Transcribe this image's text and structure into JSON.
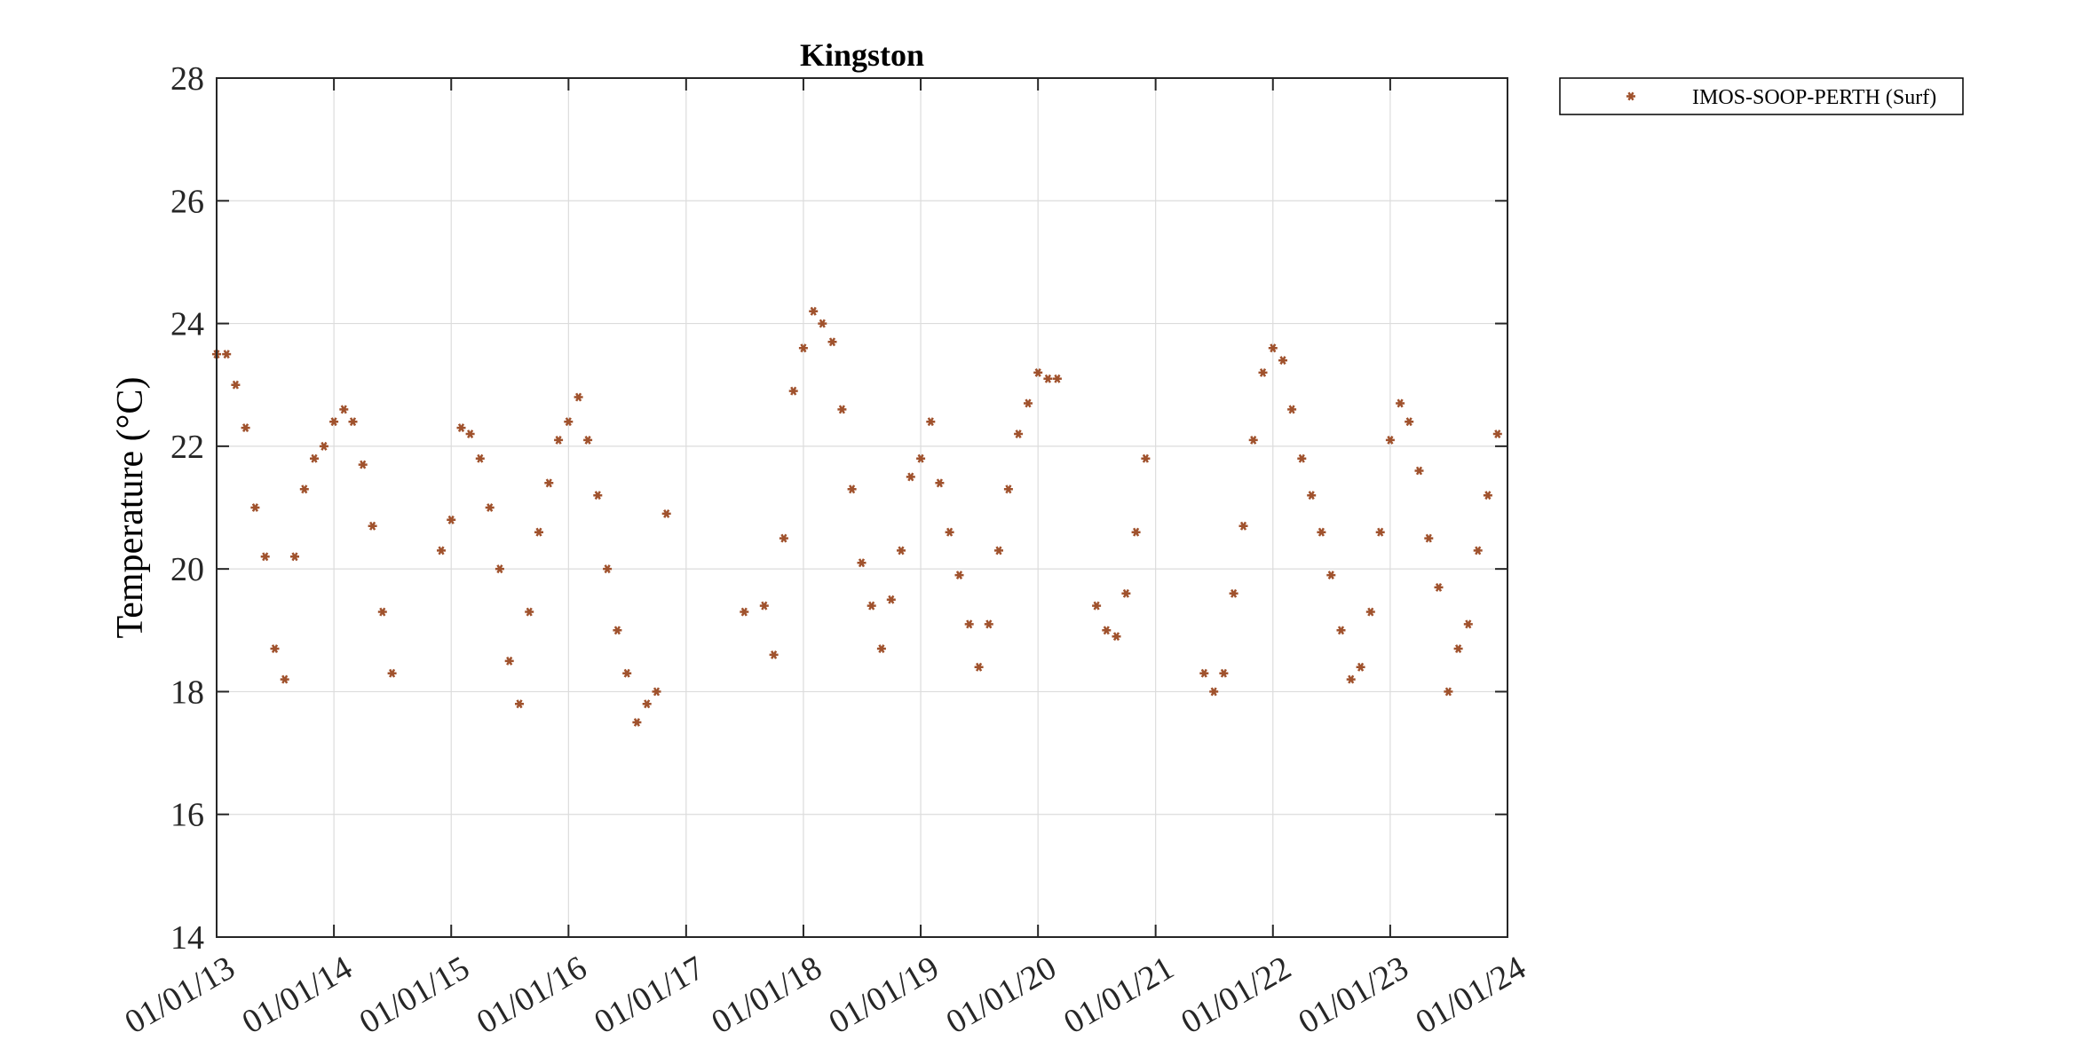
{
  "chart_data": {
    "type": "scatter",
    "title": "Kingston",
    "xlabel": "",
    "ylabel": "Temperature (°C)",
    "ylim": [
      14,
      28
    ],
    "yticks": [
      14,
      16,
      18,
      20,
      22,
      24,
      26,
      28
    ],
    "xlim": [
      "2013-01-01",
      "2024-01-01"
    ],
    "xtick_dates": [
      "2013-01-01",
      "2014-01-01",
      "2015-01-01",
      "2016-01-01",
      "2017-01-01",
      "2018-01-01",
      "2019-01-01",
      "2020-01-01",
      "2021-01-01",
      "2022-01-01",
      "2023-01-01",
      "2024-01-01"
    ],
    "xtick_labels": [
      "01/01/13",
      "01/01/14",
      "01/01/15",
      "01/01/16",
      "01/01/17",
      "01/01/18",
      "01/01/19",
      "01/01/20",
      "01/01/21",
      "01/01/22",
      "01/01/23",
      "01/01/24"
    ],
    "grid": true,
    "legend_position": "outside top-right",
    "series": [
      {
        "name": "IMOS-SOOP-PERTH (Surf)",
        "color": "#A0522D",
        "marker": "asterisk",
        "x": [
          "2013-01-01",
          "2013-02-01",
          "2013-03-01",
          "2013-04-01",
          "2013-05-01",
          "2013-06-01",
          "2013-07-01",
          "2013-08-01",
          "2013-09-01",
          "2013-10-01",
          "2013-11-01",
          "2013-12-01",
          "2014-01-01",
          "2014-02-01",
          "2014-03-01",
          "2014-04-01",
          "2014-05-01",
          "2014-06-01",
          "2014-07-01",
          "2014-12-01",
          "2015-01-01",
          "2015-02-01",
          "2015-03-01",
          "2015-04-01",
          "2015-05-01",
          "2015-06-01",
          "2015-07-01",
          "2015-08-01",
          "2015-09-01",
          "2015-10-01",
          "2015-11-01",
          "2015-12-01",
          "2016-01-01",
          "2016-02-01",
          "2016-03-01",
          "2016-04-01",
          "2016-05-01",
          "2016-06-01",
          "2016-07-01",
          "2016-08-01",
          "2016-09-01",
          "2016-10-01",
          "2016-11-01",
          "2017-07-01",
          "2017-09-01",
          "2017-10-01",
          "2017-11-01",
          "2017-12-01",
          "2018-01-01",
          "2018-02-01",
          "2018-03-01",
          "2018-04-01",
          "2018-05-01",
          "2018-06-01",
          "2018-07-01",
          "2018-08-01",
          "2018-09-01",
          "2018-10-01",
          "2018-11-01",
          "2018-12-01",
          "2019-01-01",
          "2019-02-01",
          "2019-03-01",
          "2019-04-01",
          "2019-05-01",
          "2019-06-01",
          "2019-07-01",
          "2019-08-01",
          "2019-09-01",
          "2019-10-01",
          "2019-11-01",
          "2019-12-01",
          "2020-01-01",
          "2020-02-01",
          "2020-03-01",
          "2020-07-01",
          "2020-08-01",
          "2020-09-01",
          "2020-10-01",
          "2020-11-01",
          "2020-12-01",
          "2021-06-01",
          "2021-07-01",
          "2021-08-01",
          "2021-09-01",
          "2021-10-01",
          "2021-11-01",
          "2021-12-01",
          "2022-01-01",
          "2022-02-01",
          "2022-03-01",
          "2022-04-01",
          "2022-05-01",
          "2022-06-01",
          "2022-07-01",
          "2022-08-01",
          "2022-09-01",
          "2022-10-01",
          "2022-11-01",
          "2022-12-01",
          "2023-01-01",
          "2023-02-01",
          "2023-03-01",
          "2023-04-01",
          "2023-05-01",
          "2023-06-01",
          "2023-07-01",
          "2023-08-01",
          "2023-09-01",
          "2023-10-01",
          "2023-11-01",
          "2023-12-01"
        ],
        "y": [
          23.5,
          23.5,
          23.0,
          22.3,
          21.0,
          20.2,
          18.7,
          18.2,
          20.2,
          21.3,
          21.8,
          22.0,
          22.4,
          22.6,
          22.4,
          21.7,
          20.7,
          19.3,
          18.3,
          20.3,
          20.8,
          22.3,
          22.2,
          21.8,
          21.0,
          20.0,
          18.5,
          17.8,
          19.3,
          20.6,
          21.4,
          22.1,
          22.4,
          22.8,
          22.1,
          21.2,
          20.0,
          19.0,
          18.3,
          17.5,
          17.8,
          18.0,
          20.9,
          19.3,
          19.4,
          18.6,
          20.5,
          22.9,
          23.6,
          24.2,
          24.0,
          23.7,
          22.6,
          21.3,
          20.1,
          19.4,
          18.7,
          19.5,
          20.3,
          21.5,
          21.8,
          22.4,
          21.4,
          20.6,
          19.9,
          19.1,
          18.4,
          19.1,
          20.3,
          21.3,
          22.2,
          22.7,
          23.2,
          23.1,
          23.1,
          19.4,
          19.0,
          18.9,
          19.6,
          20.6,
          21.8,
          18.3,
          18.0,
          18.3,
          19.6,
          20.7,
          22.1,
          23.2,
          23.6,
          23.4,
          22.6,
          21.8,
          21.2,
          20.6,
          19.9,
          19.0,
          18.2,
          18.4,
          19.3,
          20.6,
          22.1,
          22.7,
          22.4,
          21.6,
          20.5,
          19.7,
          18.0,
          18.7,
          19.1,
          20.3,
          21.2,
          22.2
        ]
      }
    ]
  }
}
